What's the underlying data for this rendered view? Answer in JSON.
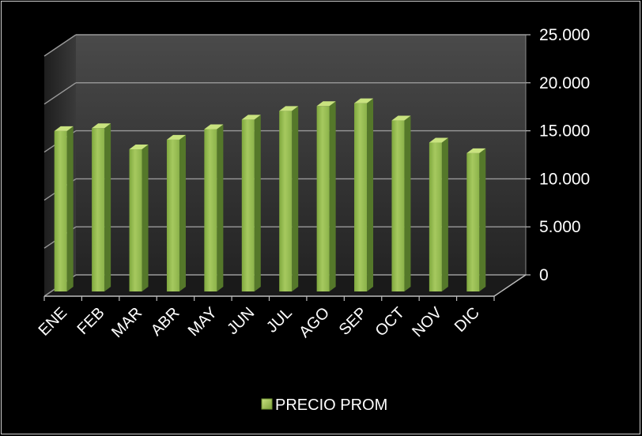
{
  "chart_data": {
    "type": "bar",
    "style": "3d-column",
    "categories": [
      "ENE",
      "FEB",
      "MAR",
      "ABR",
      "MAY",
      "JUN",
      "JUL",
      "AGO",
      "SEP",
      "OCT",
      "NOV",
      "DIC"
    ],
    "series": [
      {
        "name": "PRECIO PROM",
        "values": [
          16700,
          17000,
          14800,
          15800,
          16900,
          17900,
          18800,
          19300,
          19600,
          17800,
          15500,
          14400
        ],
        "color": "#9bbb59"
      }
    ],
    "y_ticks": [
      "0",
      "5.000",
      "10.000",
      "15.000",
      "20.000",
      "25.000"
    ],
    "ylim": [
      0,
      25000
    ],
    "grid": true,
    "y_axis_side": "right",
    "legend_position": "bottom",
    "title": "",
    "xlabel": "",
    "ylabel": ""
  },
  "colors": {
    "background": "#000000",
    "back_wall_top": "#4a4a4a",
    "back_wall_bottom": "#262626",
    "gridline": "#9a9a9a",
    "bar_front": "#8fb848",
    "bar_side": "#5a7d2a",
    "bar_top": "#c5e07e",
    "text": "#ffffff"
  }
}
